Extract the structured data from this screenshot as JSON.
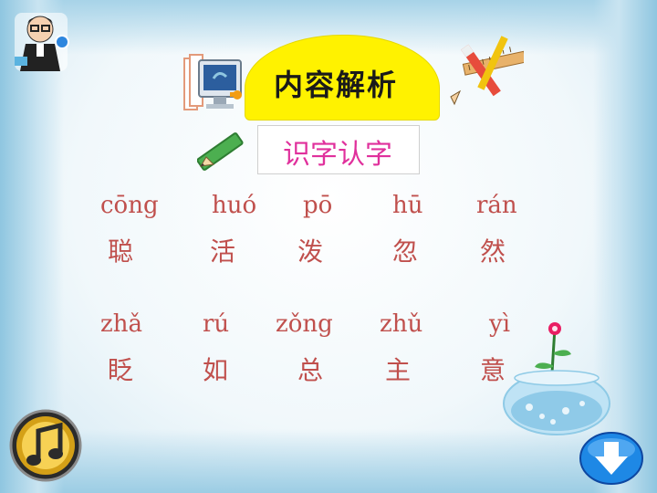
{
  "header": {
    "title": "内容解析",
    "subtitle": "识字认字"
  },
  "vocabulary": {
    "row1": [
      {
        "pinyin": "cōng",
        "hanzi": "聪"
      },
      {
        "pinyin": "huó",
        "hanzi": "活"
      },
      {
        "pinyin": "pō",
        "hanzi": "泼"
      },
      {
        "pinyin": "hū",
        "hanzi": "忽"
      },
      {
        "pinyin": "rán",
        "hanzi": "然"
      }
    ],
    "row2": [
      {
        "pinyin": "zhǎ",
        "hanzi": "眨"
      },
      {
        "pinyin": "rú",
        "hanzi": "如"
      },
      {
        "pinyin": "zǒng",
        "hanzi": "总"
      },
      {
        "pinyin": "zhǔ",
        "hanzi": "主"
      },
      {
        "pinyin": "yì",
        "hanzi": "意"
      }
    ]
  },
  "colors": {
    "accent_title_bg": "#fff200",
    "subtitle_color": "#e0309c",
    "vocab_color": "#c0504d"
  },
  "icons": {
    "top_left": "teacher-icon",
    "computer": "computer-icon",
    "pencil_ruler": "pencil-ruler-icon",
    "pen": "green-pen-icon",
    "music": "music-note-icon",
    "bowl": "fishbowl-icon",
    "next": "down-arrow-icon"
  }
}
